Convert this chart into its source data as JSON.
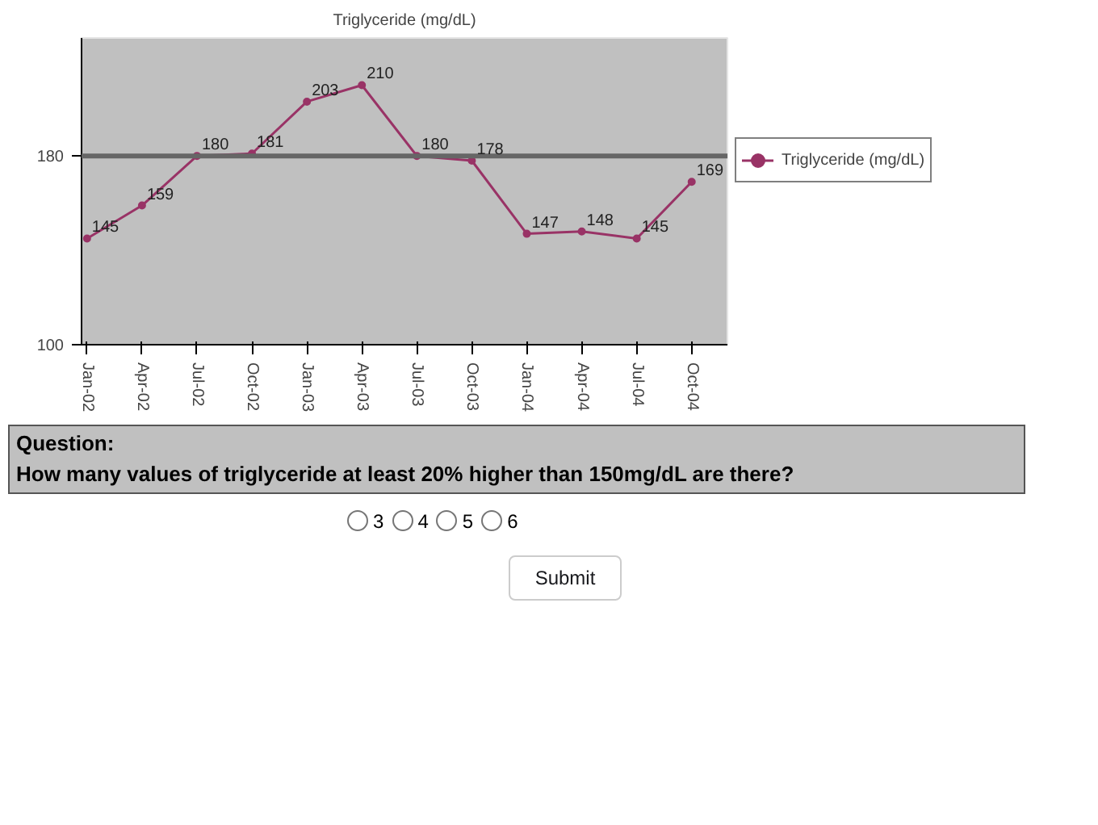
{
  "chart_data": {
    "type": "line",
    "title": "Triglyceride (mg/dL)",
    "categories": [
      "Jan-02",
      "Apr-02",
      "Jul-02",
      "Oct-02",
      "Jan-03",
      "Apr-03",
      "Jul-03",
      "Oct-03",
      "Jan-04",
      "Apr-04",
      "Jul-04",
      "Oct-04"
    ],
    "series": [
      {
        "name": "Triglyceride (mg/dL)",
        "color": "#993366",
        "values": [
          145,
          159,
          180,
          181,
          203,
          210,
          180,
          178,
          147,
          148,
          145,
          169
        ]
      }
    ],
    "ylim": [
      100,
      230
    ],
    "yticks": [
      100,
      180
    ],
    "ref_lines": [
      {
        "axis": "y",
        "value": 180,
        "color": "#666666"
      }
    ],
    "data_labels": true,
    "marker": "circle",
    "line_style": "solid",
    "legend": "right",
    "grid": false,
    "annotations": [
      "Question:",
      "How many values of triglyceride at least 20% higher than 150mg/dL are there?",
      "3",
      "4",
      "5",
      "6",
      "Submit"
    ]
  }
}
